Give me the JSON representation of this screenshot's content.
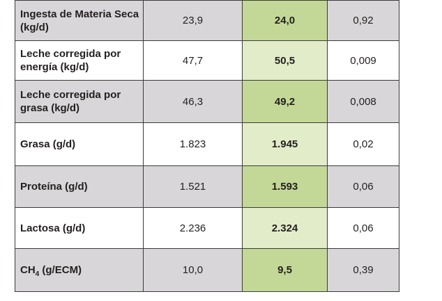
{
  "table": {
    "rows": [
      {
        "label": "Ingesta de Materia Seca (kg/d)",
        "v1": "23,9",
        "v2": "24,0",
        "v3": "0,92"
      },
      {
        "label": "Leche corregida por energía (kg/d)",
        "v1": "47,7",
        "v2": "50,5",
        "v3": "0,009"
      },
      {
        "label": "Leche corregida por grasa (kg/d)",
        "v1": "46,3",
        "v2": "49,2",
        "v3": "0,008"
      },
      {
        "label": "Grasa (g/d)",
        "v1": "1.823",
        "v2": "1.945",
        "v3": "0,02"
      },
      {
        "label": "Proteína (g/d)",
        "v1": "1.521",
        "v2": "1.593",
        "v3": "0,06"
      },
      {
        "label": "Lactosa (g/d)",
        "v1": "2.236",
        "v2": "2.324",
        "v3": "0,06"
      },
      {
        "label_prefix": "CH",
        "label_sub": "4",
        "label_suffix": " (g/ECM)",
        "v1": "10,0",
        "v2": "9,5",
        "v3": "0,39"
      }
    ]
  },
  "colors": {
    "row_shade": "#d8d6d8",
    "highlight_dark": "#c3d896",
    "highlight_light": "#e2ecc9",
    "border": "#3a3a3a"
  }
}
